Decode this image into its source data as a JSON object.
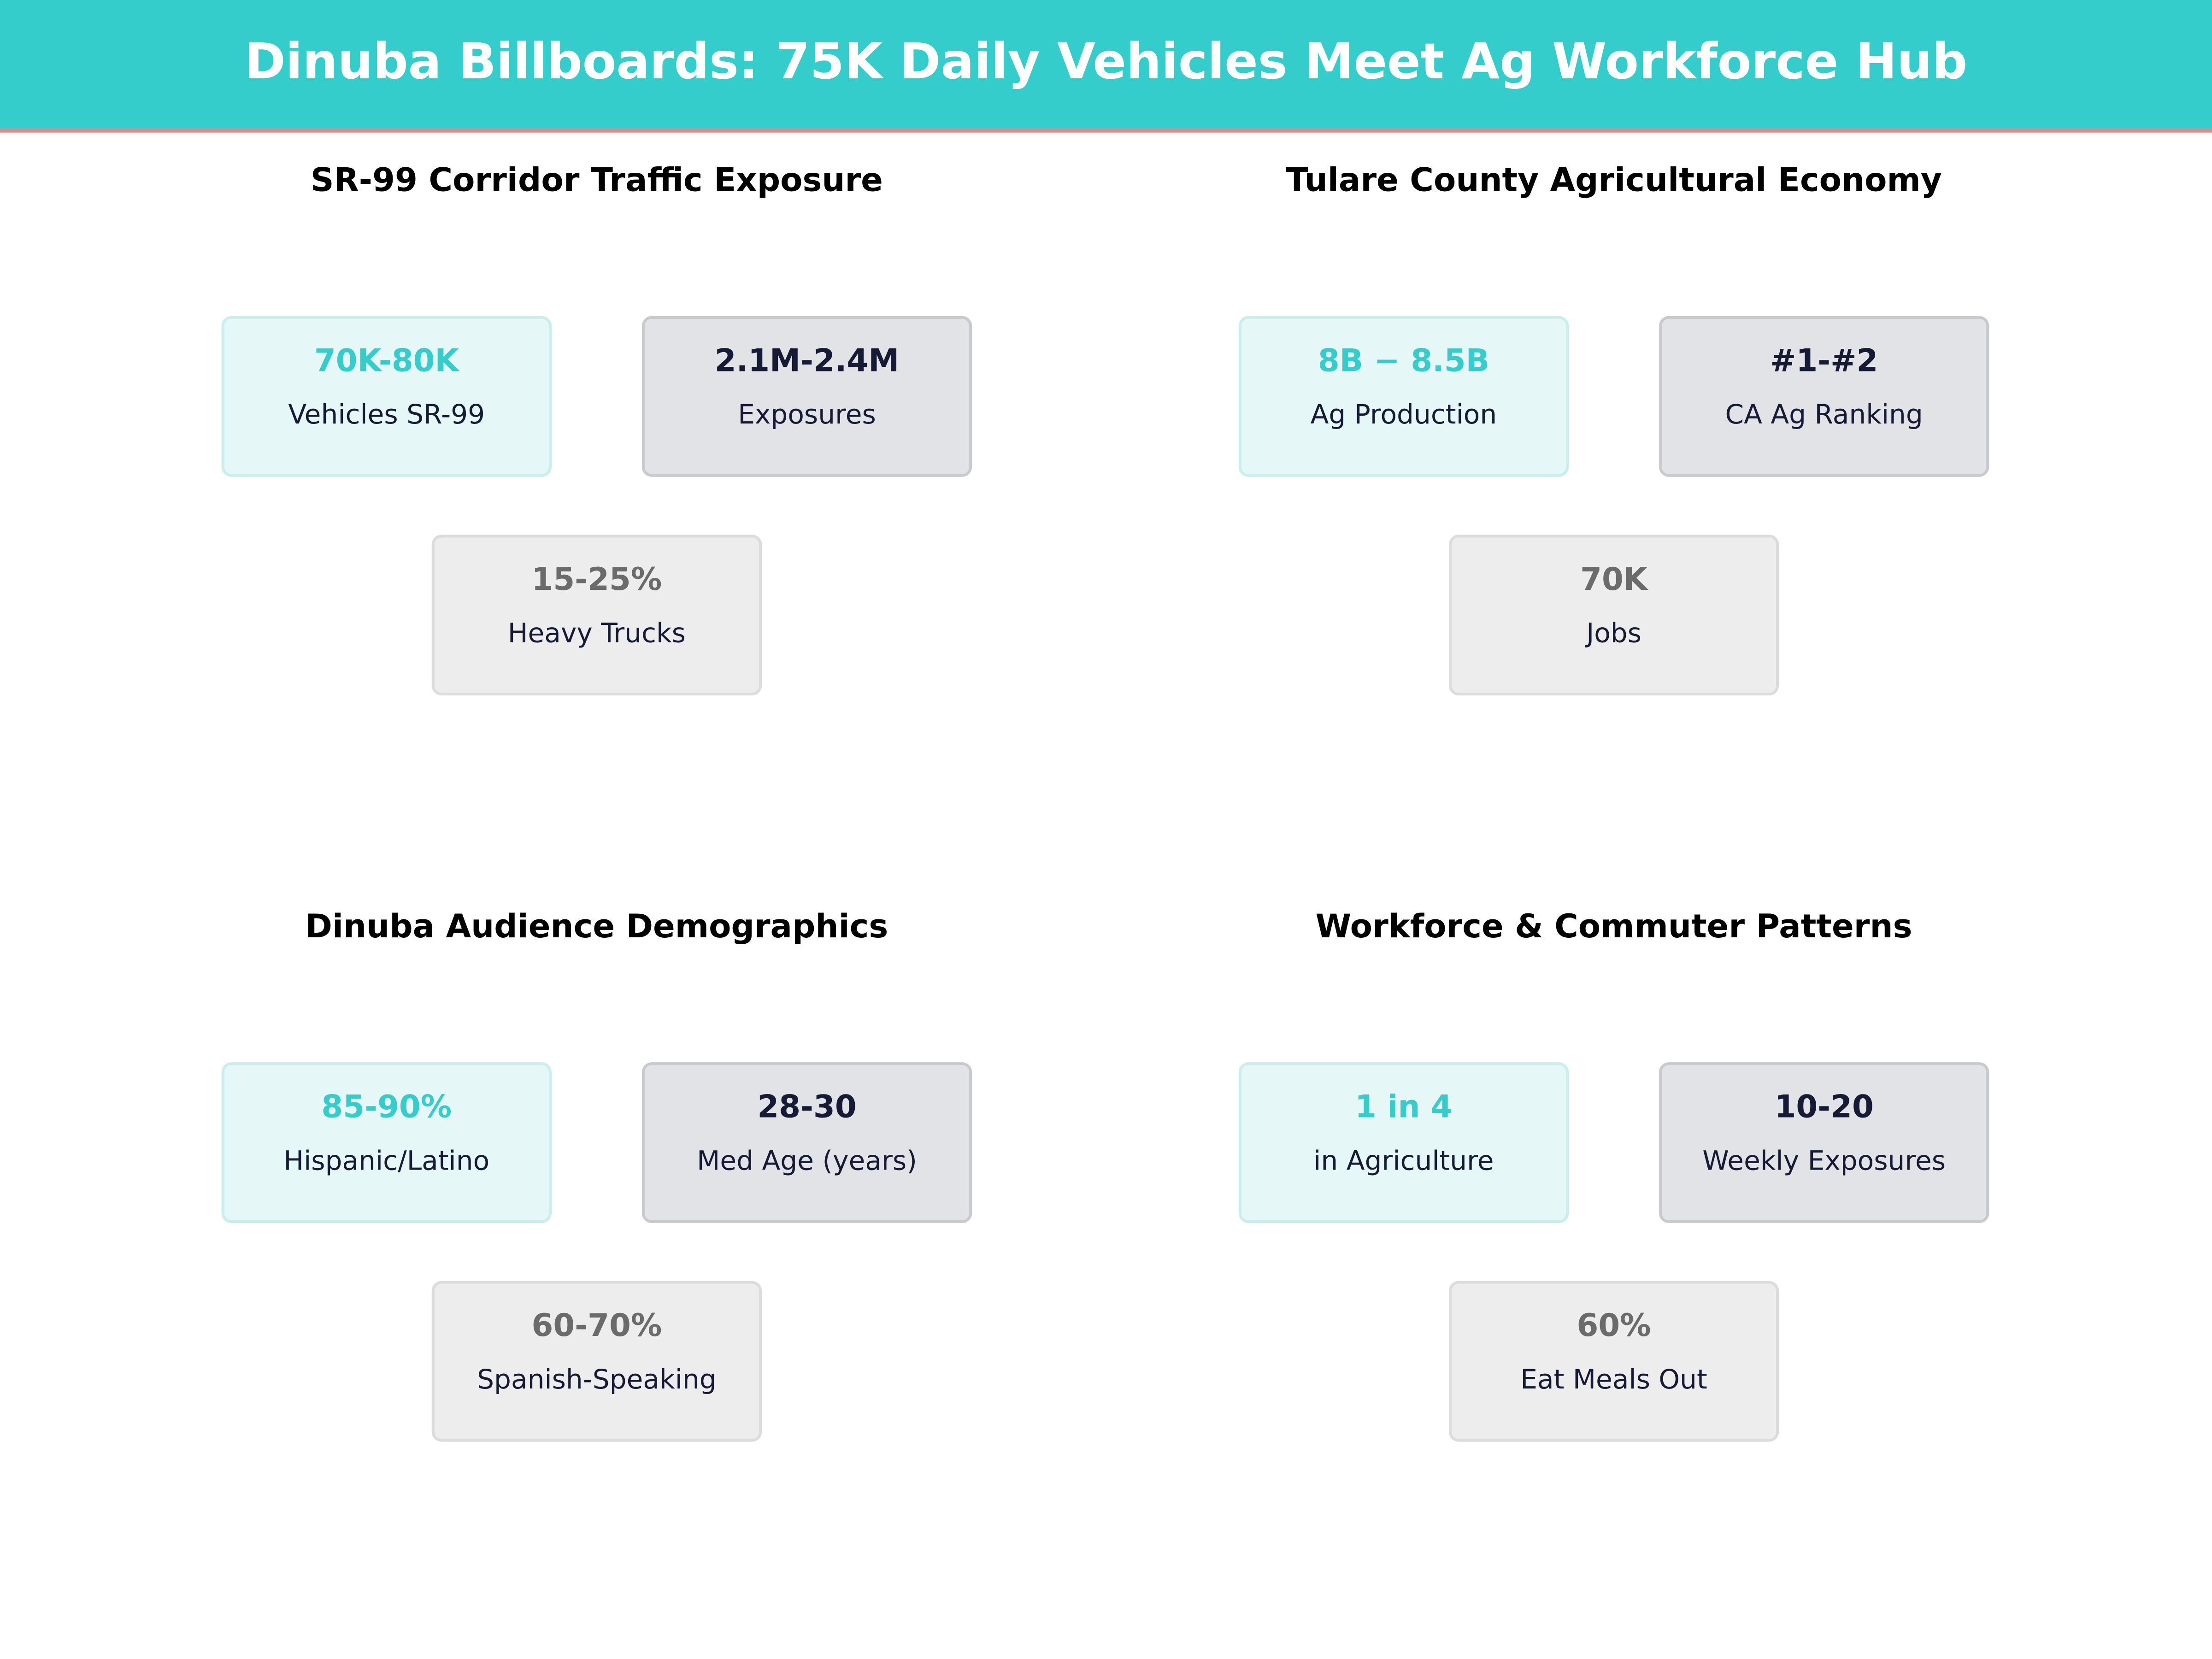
{
  "header": {
    "title": "Dinuba Billboards: 75K Daily Vehicles Meet Ag Workforce Hub"
  },
  "panels": [
    {
      "title": "SR-99 Corridor Traffic Exposure",
      "cards": [
        {
          "value": "70K-80K",
          "label": "Vehicles SR-99"
        },
        {
          "value": "2.1M-2.4M",
          "label": "Exposures"
        },
        {
          "value": "15-25%",
          "label": "Heavy Trucks"
        }
      ]
    },
    {
      "title": "Tulare County Agricultural Economy",
      "cards": [
        {
          "value": "8B − 8.5B",
          "label": "Ag Production"
        },
        {
          "value": "#1-#2",
          "label": "CA Ag Ranking"
        },
        {
          "value": "70K",
          "label": "Jobs"
        }
      ]
    },
    {
      "title": "Dinuba Audience Demographics",
      "cards": [
        {
          "value": "85-90%",
          "label": "Hispanic/Latino"
        },
        {
          "value": "28-30",
          "label": "Med Age (years)"
        },
        {
          "value": "60-70%",
          "label": "Spanish-Speaking"
        }
      ]
    },
    {
      "title": "Workforce & Commuter Patterns",
      "cards": [
        {
          "value": "1 in 4",
          "label": "in Agriculture"
        },
        {
          "value": "10-20",
          "label": "Weekly Exposures"
        },
        {
          "value": "60%",
          "label": "Eat Meals Out"
        }
      ]
    }
  ]
}
